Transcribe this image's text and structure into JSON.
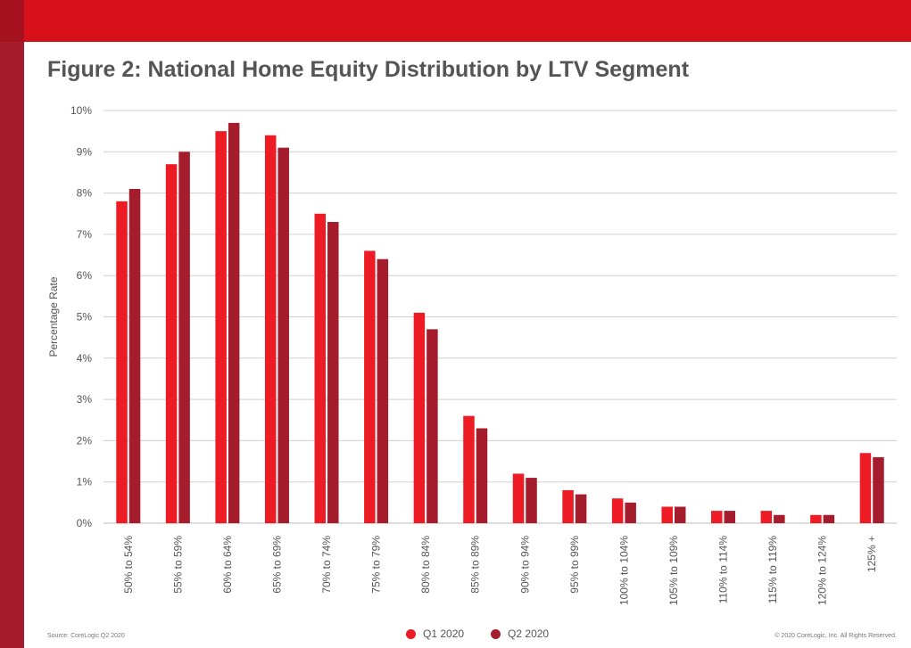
{
  "colors": {
    "q1": "#ed1c24",
    "q2": "#a51d2d",
    "grid": "#d0d0d0",
    "text": "#555555"
  },
  "header": {
    "title": "Figure 2: National Home Equity Distribution by LTV Segment"
  },
  "footer": {
    "source": "Source: CoreLogic Q2 2020",
    "copyright": "© 2020 CoreLogic, Inc. All Rights Reserved."
  },
  "chart_data": {
    "type": "bar",
    "title": "Figure 2: National Home Equity Distribution by LTV Segment",
    "xlabel": "",
    "ylabel": "Percentage Rate",
    "ylim": [
      0,
      10
    ],
    "yticks": [
      "0%",
      "1%",
      "2%",
      "3%",
      "4%",
      "5%",
      "6%",
      "7%",
      "8%",
      "9%",
      "10%"
    ],
    "categories": [
      "50% to 54%",
      "55% to 59%",
      "60% to 64%",
      "65% to 69%",
      "70% to 74%",
      "75% to 79%",
      "80% to 84%",
      "85% to 89%",
      "90% to 94%",
      "95% to 99%",
      "100% to 104%",
      "105% to 109%",
      "110% to 114%",
      "115% to 119%",
      "120% to 124%",
      "125% +"
    ],
    "series": [
      {
        "name": "Q1 2020",
        "color": "#ed1c24",
        "values": [
          7.8,
          8.7,
          9.5,
          9.4,
          7.5,
          6.6,
          5.1,
          2.6,
          1.2,
          0.8,
          0.6,
          0.4,
          0.3,
          0.3,
          0.2,
          1.7
        ]
      },
      {
        "name": "Q2 2020",
        "color": "#a51d2d",
        "values": [
          8.1,
          9.0,
          9.7,
          9.1,
          7.3,
          6.4,
          4.7,
          2.3,
          1.1,
          0.7,
          0.5,
          0.4,
          0.3,
          0.2,
          0.2,
          1.6
        ]
      }
    ],
    "legend_position": "bottom-center",
    "grid": true
  }
}
